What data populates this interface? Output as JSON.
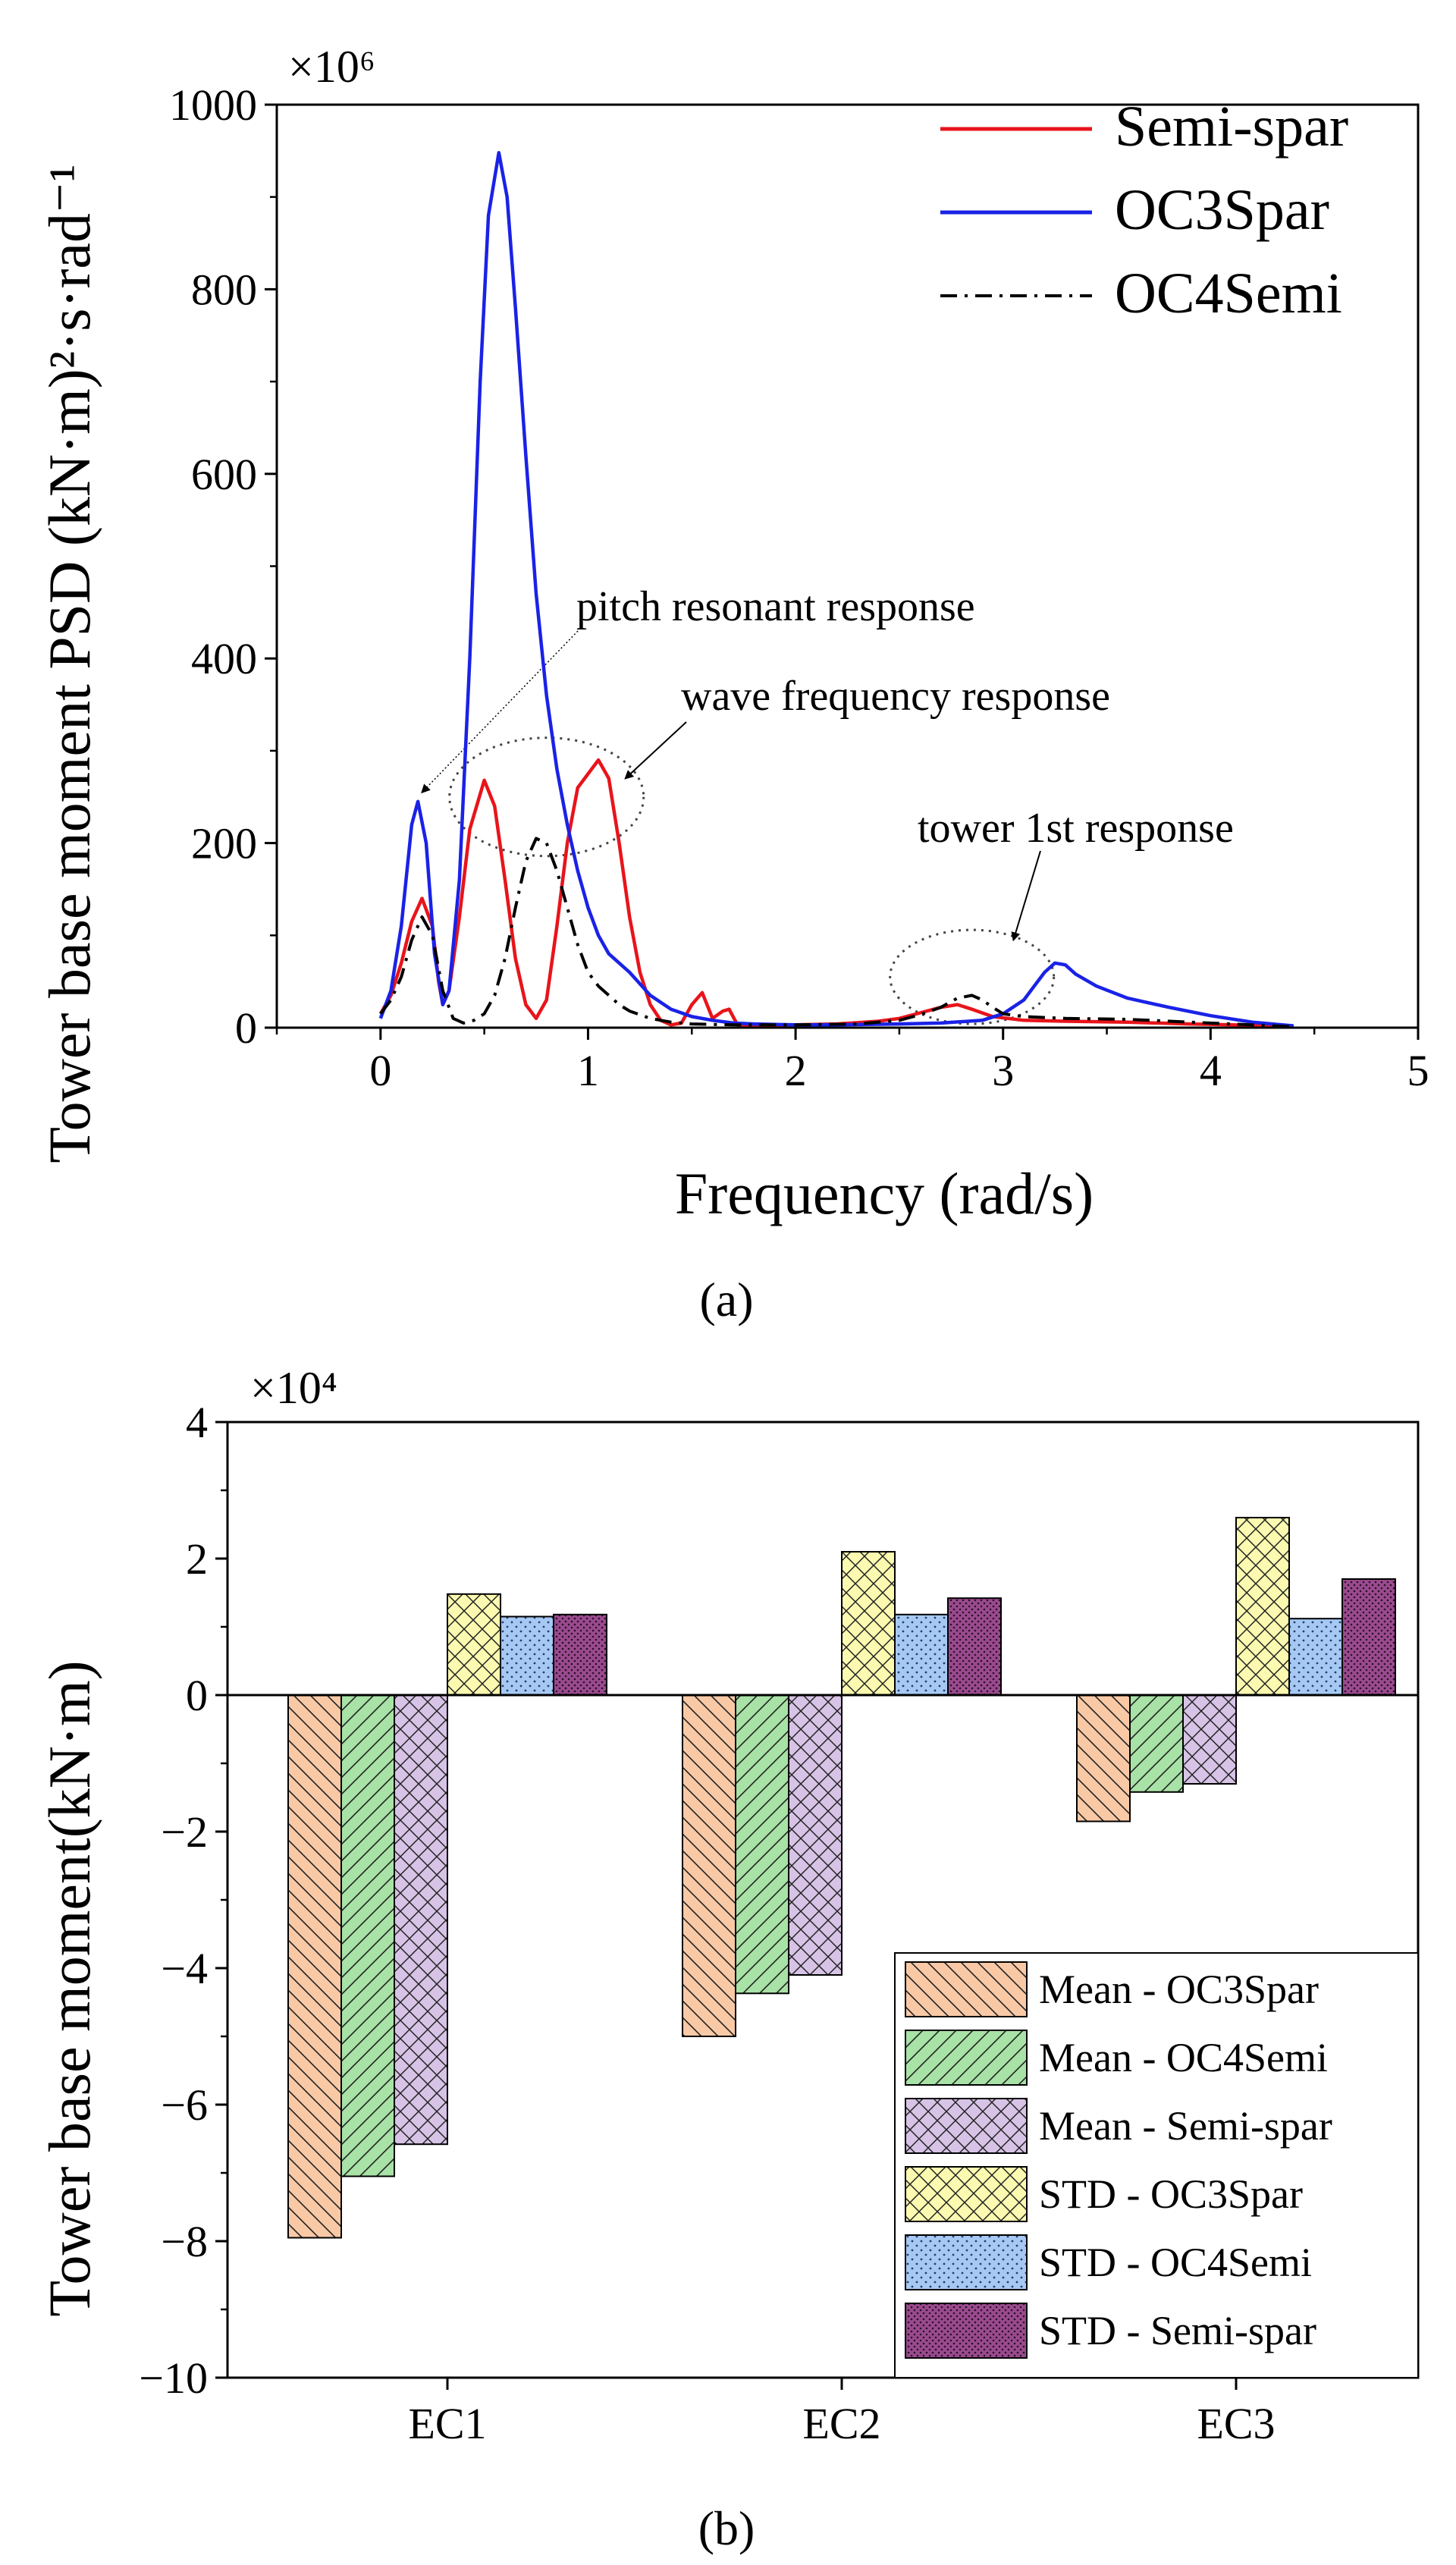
{
  "chart_data": [
    {
      "type": "line",
      "panel_label": "(a)",
      "xlabel": "Frequency (rad/s)",
      "ylabel": "Tower base moment PSD (kN·m)²·s·rad⁻¹",
      "y_multiplier": "×10⁶",
      "xlim": [
        -0.5,
        5
      ],
      "ylim": [
        0,
        1000
      ],
      "x_ticks": [
        0,
        1,
        2,
        3,
        4,
        5
      ],
      "y_ticks": [
        0,
        200,
        400,
        600,
        800,
        1000
      ],
      "grid": false,
      "legend_position": "top-right",
      "series": [
        {
          "name": "Semi-spar",
          "color": "#e8141b",
          "style": "solid",
          "points": [
            [
              0,
              15
            ],
            [
              0.05,
              35
            ],
            [
              0.1,
              70
            ],
            [
              0.15,
              115
            ],
            [
              0.2,
              140
            ],
            [
              0.25,
              110
            ],
            [
              0.28,
              50
            ],
            [
              0.3,
              25
            ],
            [
              0.33,
              40
            ],
            [
              0.38,
              120
            ],
            [
              0.43,
              215
            ],
            [
              0.5,
              268
            ],
            [
              0.55,
              240
            ],
            [
              0.6,
              160
            ],
            [
              0.65,
              75
            ],
            [
              0.7,
              25
            ],
            [
              0.75,
              10
            ],
            [
              0.8,
              30
            ],
            [
              0.85,
              110
            ],
            [
              0.9,
              200
            ],
            [
              0.95,
              260
            ],
            [
              1.05,
              290
            ],
            [
              1.1,
              270
            ],
            [
              1.15,
              200
            ],
            [
              1.2,
              120
            ],
            [
              1.25,
              60
            ],
            [
              1.3,
              25
            ],
            [
              1.35,
              8
            ],
            [
              1.4,
              3
            ],
            [
              1.45,
              5
            ],
            [
              1.5,
              25
            ],
            [
              1.55,
              38
            ],
            [
              1.6,
              10
            ],
            [
              1.65,
              18
            ],
            [
              1.68,
              20
            ],
            [
              1.72,
              3
            ],
            [
              1.8,
              2
            ],
            [
              2.0,
              3
            ],
            [
              2.2,
              4
            ],
            [
              2.4,
              7
            ],
            [
              2.5,
              10
            ],
            [
              2.6,
              16
            ],
            [
              2.7,
              22
            ],
            [
              2.78,
              25
            ],
            [
              2.85,
              20
            ],
            [
              2.95,
              12
            ],
            [
              3.1,
              8
            ],
            [
              3.3,
              7
            ],
            [
              3.6,
              6
            ],
            [
              3.9,
              4
            ],
            [
              4.1,
              3
            ],
            [
              4.3,
              2
            ],
            [
              4.4,
              1
            ]
          ]
        },
        {
          "name": "OC3Spar",
          "color": "#1a22e6",
          "style": "solid",
          "points": [
            [
              0,
              10
            ],
            [
              0.05,
              40
            ],
            [
              0.1,
              110
            ],
            [
              0.15,
              220
            ],
            [
              0.18,
              245
            ],
            [
              0.22,
              200
            ],
            [
              0.26,
              80
            ],
            [
              0.3,
              25
            ],
            [
              0.33,
              40
            ],
            [
              0.38,
              160
            ],
            [
              0.43,
              400
            ],
            [
              0.48,
              700
            ],
            [
              0.52,
              880
            ],
            [
              0.57,
              948
            ],
            [
              0.61,
              900
            ],
            [
              0.65,
              780
            ],
            [
              0.7,
              620
            ],
            [
              0.75,
              470
            ],
            [
              0.8,
              360
            ],
            [
              0.85,
              280
            ],
            [
              0.9,
              220
            ],
            [
              0.95,
              170
            ],
            [
              1.0,
              130
            ],
            [
              1.05,
              100
            ],
            [
              1.1,
              80
            ],
            [
              1.2,
              60
            ],
            [
              1.3,
              35
            ],
            [
              1.4,
              20
            ],
            [
              1.5,
              12
            ],
            [
              1.6,
              8
            ],
            [
              1.7,
              5
            ],
            [
              1.8,
              4
            ],
            [
              2.0,
              3
            ],
            [
              2.2,
              3
            ],
            [
              2.5,
              4
            ],
            [
              2.7,
              5
            ],
            [
              2.9,
              8
            ],
            [
              3.0,
              15
            ],
            [
              3.1,
              30
            ],
            [
              3.15,
              45
            ],
            [
              3.2,
              60
            ],
            [
              3.25,
              70
            ],
            [
              3.3,
              68
            ],
            [
              3.35,
              58
            ],
            [
              3.45,
              45
            ],
            [
              3.6,
              32
            ],
            [
              3.8,
              22
            ],
            [
              4.0,
              13
            ],
            [
              4.2,
              6
            ],
            [
              4.4,
              2
            ]
          ]
        },
        {
          "name": "OC4Semi",
          "color": "#000000",
          "style": "dashdot",
          "points": [
            [
              0,
              15
            ],
            [
              0.05,
              30
            ],
            [
              0.1,
              55
            ],
            [
              0.15,
              95
            ],
            [
              0.2,
              120
            ],
            [
              0.25,
              100
            ],
            [
              0.3,
              40
            ],
            [
              0.35,
              10
            ],
            [
              0.4,
              5
            ],
            [
              0.45,
              8
            ],
            [
              0.5,
              15
            ],
            [
              0.55,
              35
            ],
            [
              0.6,
              75
            ],
            [
              0.65,
              130
            ],
            [
              0.7,
              180
            ],
            [
              0.75,
              205
            ],
            [
              0.8,
              200
            ],
            [
              0.85,
              170
            ],
            [
              0.9,
              130
            ],
            [
              0.95,
              90
            ],
            [
              1.0,
              60
            ],
            [
              1.05,
              45
            ],
            [
              1.1,
              35
            ],
            [
              1.15,
              25
            ],
            [
              1.2,
              18
            ],
            [
              1.3,
              10
            ],
            [
              1.4,
              6
            ],
            [
              1.5,
              4
            ],
            [
              1.7,
              3
            ],
            [
              2.0,
              3
            ],
            [
              2.3,
              4
            ],
            [
              2.5,
              8
            ],
            [
              2.6,
              14
            ],
            [
              2.7,
              22
            ],
            [
              2.78,
              32
            ],
            [
              2.85,
              35
            ],
            [
              2.9,
              30
            ],
            [
              2.95,
              22
            ],
            [
              3.0,
              15
            ],
            [
              3.1,
              12
            ],
            [
              3.3,
              10
            ],
            [
              3.6,
              9
            ],
            [
              3.9,
              6
            ],
            [
              4.1,
              4
            ],
            [
              4.3,
              2
            ],
            [
              4.4,
              1
            ]
          ]
        }
      ],
      "annotations": [
        {
          "text": "pitch resonant response",
          "target": [
            0.18,
            245
          ]
        },
        {
          "text": "wave frequency response",
          "target": [
            0.8,
            250
          ]
        },
        {
          "text": "tower 1st response",
          "target": [
            2.8,
            60
          ]
        }
      ]
    },
    {
      "type": "bar",
      "panel_label": "(b)",
      "ylabel": "Tower base moment(kN·m)",
      "y_multiplier": "×10⁴",
      "ylim": [
        -10,
        4
      ],
      "y_ticks": [
        -10,
        -8,
        -6,
        -4,
        -2,
        0,
        2,
        4
      ],
      "y_tick_labels": [
        "−10",
        "−8",
        "−6",
        "−4",
        "−2",
        "0",
        "2",
        "4"
      ],
      "categories": [
        "EC1",
        "EC2",
        "EC3"
      ],
      "grid": false,
      "legend_position": "bottom-right",
      "series": [
        {
          "name": "Mean - OC3Spar",
          "color": "#f9c9a6",
          "pattern": "diagonal-back",
          "values": [
            -7.95,
            -5.0,
            -1.85
          ]
        },
        {
          "name": "Mean - OC4Semi",
          "color": "#a8e2a6",
          "pattern": "diagonal-forward",
          "values": [
            -7.05,
            -4.37,
            -1.42
          ]
        },
        {
          "name": "Mean - Semi-spar",
          "color": "#d7c3e6",
          "pattern": "crosshatch",
          "values": [
            -6.58,
            -4.1,
            -1.3
          ]
        },
        {
          "name": "STD - OC3Spar",
          "color": "#fbfab0",
          "pattern": "crosshatch",
          "values": [
            1.48,
            2.1,
            2.6
          ]
        },
        {
          "name": "STD - OC4Semi",
          "color": "#a6c9f4",
          "pattern": "dots",
          "values": [
            1.15,
            1.18,
            1.12
          ]
        },
        {
          "name": "STD - Semi-spar",
          "color": "#9a4a8e",
          "pattern": "dense-dots",
          "values": [
            1.18,
            1.42,
            1.7
          ]
        }
      ]
    }
  ]
}
